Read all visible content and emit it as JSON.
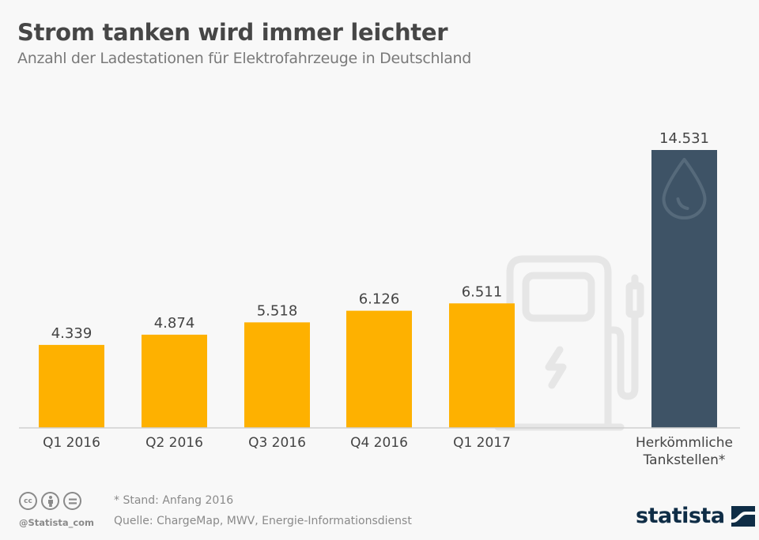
{
  "header": {
    "title": "Strom tanken wird immer leichter",
    "subtitle": "Anzahl der Ladestationen für Elektrofahrzeuge in Deutschland"
  },
  "chart_data": {
    "type": "bar",
    "title": "Strom tanken wird immer leichter",
    "subtitle": "Anzahl der Ladestationen für Elektrofahrzeuge in Deutschland",
    "xlabel": "",
    "ylabel": "",
    "ylim": [
      0,
      14531
    ],
    "grid": false,
    "categories": [
      "Q1 2016",
      "Q2 2016",
      "Q3 2016",
      "Q4 2016",
      "Q1 2017",
      "Herkömmliche Tankstellen*"
    ],
    "category_lines": [
      [
        "Q1 2016"
      ],
      [
        "Q2 2016"
      ],
      [
        "Q3 2016"
      ],
      [
        "Q4 2016"
      ],
      [
        "Q1 2017"
      ],
      [
        "Herkömmliche",
        "Tankstellen*"
      ]
    ],
    "values": [
      4339,
      4874,
      5518,
      6126,
      6511,
      14531
    ],
    "value_labels": [
      "4.339",
      "4.874",
      "5.518",
      "6.126",
      "6.511",
      "14.531"
    ],
    "colors": [
      "#feb100",
      "#feb100",
      "#feb100",
      "#feb100",
      "#feb100",
      "#3e5366"
    ],
    "decorations": [
      "charging-station-icon",
      "fuel-drop-icon"
    ]
  },
  "footer": {
    "footnote": "* Stand: Anfang 2016",
    "source": "Quelle: ChargeMap, MWV, Energie-Informationsdienst",
    "handle": "@Statista_com",
    "license_icons": [
      "cc",
      "by",
      "nd"
    ],
    "brand": "statista"
  }
}
